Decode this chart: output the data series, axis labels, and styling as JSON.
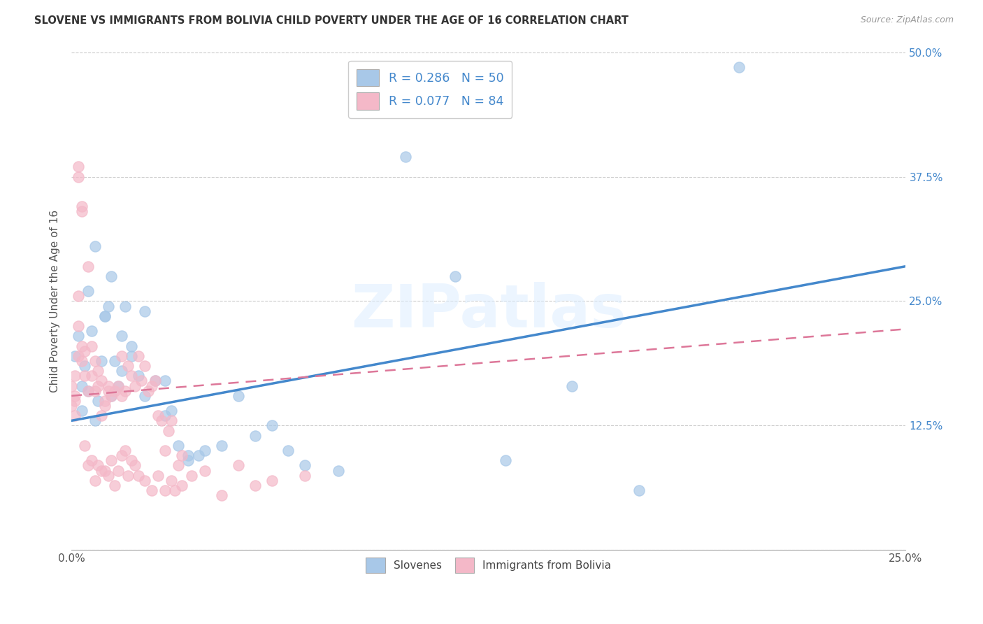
{
  "title": "SLOVENE VS IMMIGRANTS FROM BOLIVIA CHILD POVERTY UNDER THE AGE OF 16 CORRELATION CHART",
  "source": "Source: ZipAtlas.com",
  "ylabel": "Child Poverty Under the Age of 16",
  "xlim": [
    0.0,
    0.25
  ],
  "ylim": [
    0.0,
    0.5
  ],
  "yticks": [
    0.0,
    0.125,
    0.25,
    0.375,
    0.5
  ],
  "ytick_labels": [
    "",
    "12.5%",
    "25.0%",
    "37.5%",
    "50.0%"
  ],
  "xtick_labels_bottom": [
    "0.0%",
    "",
    "",
    "",
    "",
    "",
    "",
    "",
    "",
    "25.0%"
  ],
  "color_slovene": "#a8c8e8",
  "color_bolivia": "#f4b8c8",
  "color_trendline_slovene": "#4488cc",
  "color_trendline_bolivia": "#dd7799",
  "watermark_text": "ZIPatlas",
  "trendline_slovene_x0": 0.0,
  "trendline_slovene_y0": 0.13,
  "trendline_slovene_x1": 0.25,
  "trendline_slovene_y1": 0.285,
  "trendline_bolivia_x0": 0.0,
  "trendline_bolivia_y0": 0.155,
  "trendline_bolivia_x1": 0.25,
  "trendline_bolivia_y1": 0.222,
  "slovene_x": [
    0.001,
    0.002,
    0.003,
    0.003,
    0.004,
    0.005,
    0.006,
    0.007,
    0.008,
    0.009,
    0.01,
    0.011,
    0.012,
    0.013,
    0.014,
    0.015,
    0.016,
    0.018,
    0.02,
    0.022,
    0.025,
    0.028,
    0.03,
    0.032,
    0.035,
    0.038,
    0.04,
    0.045,
    0.05,
    0.055,
    0.06,
    0.065,
    0.07,
    0.08,
    0.09,
    0.1,
    0.115,
    0.13,
    0.15,
    0.17,
    0.005,
    0.007,
    0.01,
    0.012,
    0.015,
    0.018,
    0.022,
    0.028,
    0.035,
    0.2
  ],
  "slovene_y": [
    0.195,
    0.215,
    0.165,
    0.14,
    0.185,
    0.16,
    0.22,
    0.13,
    0.15,
    0.19,
    0.235,
    0.245,
    0.275,
    0.19,
    0.165,
    0.18,
    0.245,
    0.205,
    0.175,
    0.155,
    0.17,
    0.135,
    0.14,
    0.105,
    0.09,
    0.095,
    0.1,
    0.105,
    0.155,
    0.115,
    0.125,
    0.1,
    0.085,
    0.08,
    0.44,
    0.395,
    0.275,
    0.09,
    0.165,
    0.06,
    0.26,
    0.305,
    0.235,
    0.155,
    0.215,
    0.195,
    0.24,
    0.17,
    0.095,
    0.485
  ],
  "bolivia_x": [
    0.0,
    0.001,
    0.001,
    0.001,
    0.002,
    0.002,
    0.002,
    0.003,
    0.003,
    0.004,
    0.004,
    0.005,
    0.005,
    0.006,
    0.006,
    0.007,
    0.007,
    0.008,
    0.008,
    0.009,
    0.009,
    0.01,
    0.01,
    0.011,
    0.011,
    0.012,
    0.013,
    0.014,
    0.015,
    0.015,
    0.016,
    0.017,
    0.018,
    0.019,
    0.02,
    0.021,
    0.022,
    0.023,
    0.024,
    0.025,
    0.026,
    0.027,
    0.028,
    0.029,
    0.03,
    0.031,
    0.032,
    0.033,
    0.0,
    0.001,
    0.002,
    0.002,
    0.003,
    0.003,
    0.004,
    0.005,
    0.006,
    0.007,
    0.008,
    0.009,
    0.01,
    0.011,
    0.012,
    0.013,
    0.014,
    0.015,
    0.016,
    0.017,
    0.018,
    0.019,
    0.02,
    0.022,
    0.024,
    0.026,
    0.028,
    0.03,
    0.033,
    0.036,
    0.04,
    0.045,
    0.05,
    0.055,
    0.06,
    0.07
  ],
  "bolivia_y": [
    0.165,
    0.155,
    0.175,
    0.15,
    0.255,
    0.195,
    0.225,
    0.19,
    0.205,
    0.2,
    0.175,
    0.285,
    0.16,
    0.175,
    0.205,
    0.19,
    0.16,
    0.165,
    0.18,
    0.135,
    0.17,
    0.15,
    0.145,
    0.165,
    0.16,
    0.155,
    0.16,
    0.165,
    0.155,
    0.195,
    0.16,
    0.185,
    0.175,
    0.165,
    0.195,
    0.17,
    0.185,
    0.16,
    0.165,
    0.17,
    0.135,
    0.13,
    0.1,
    0.12,
    0.13,
    0.06,
    0.085,
    0.095,
    0.145,
    0.135,
    0.385,
    0.375,
    0.34,
    0.345,
    0.105,
    0.085,
    0.09,
    0.07,
    0.085,
    0.08,
    0.08,
    0.075,
    0.09,
    0.065,
    0.08,
    0.095,
    0.1,
    0.075,
    0.09,
    0.085,
    0.075,
    0.07,
    0.06,
    0.075,
    0.06,
    0.07,
    0.065,
    0.075,
    0.08,
    0.055,
    0.085,
    0.065,
    0.07,
    0.075
  ]
}
